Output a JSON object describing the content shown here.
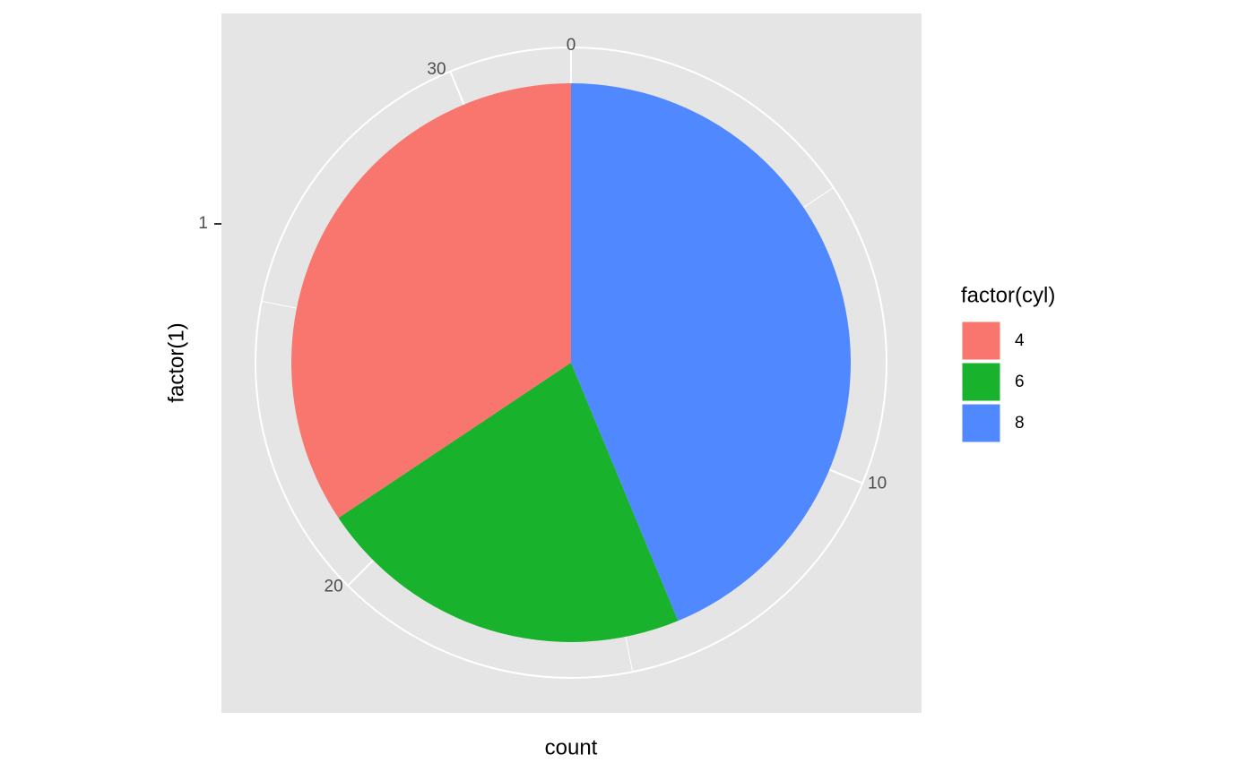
{
  "chart_data": {
    "type": "pie",
    "x_label": "count",
    "y_label": "factor(1)",
    "legend_title": "factor(cyl)",
    "y_categories": [
      "1"
    ],
    "categories": [
      "4",
      "6",
      "8"
    ],
    "values": [
      11,
      7,
      14
    ],
    "colors": [
      "#f8766d",
      "#19b22d",
      "#5088ff"
    ],
    "stack_order": "reverse",
    "thetalim": [
      0,
      32
    ],
    "thetaticks": [
      0,
      10,
      20,
      30
    ],
    "theta_minor_ticks": [
      5,
      15,
      25
    ],
    "grid": true
  }
}
